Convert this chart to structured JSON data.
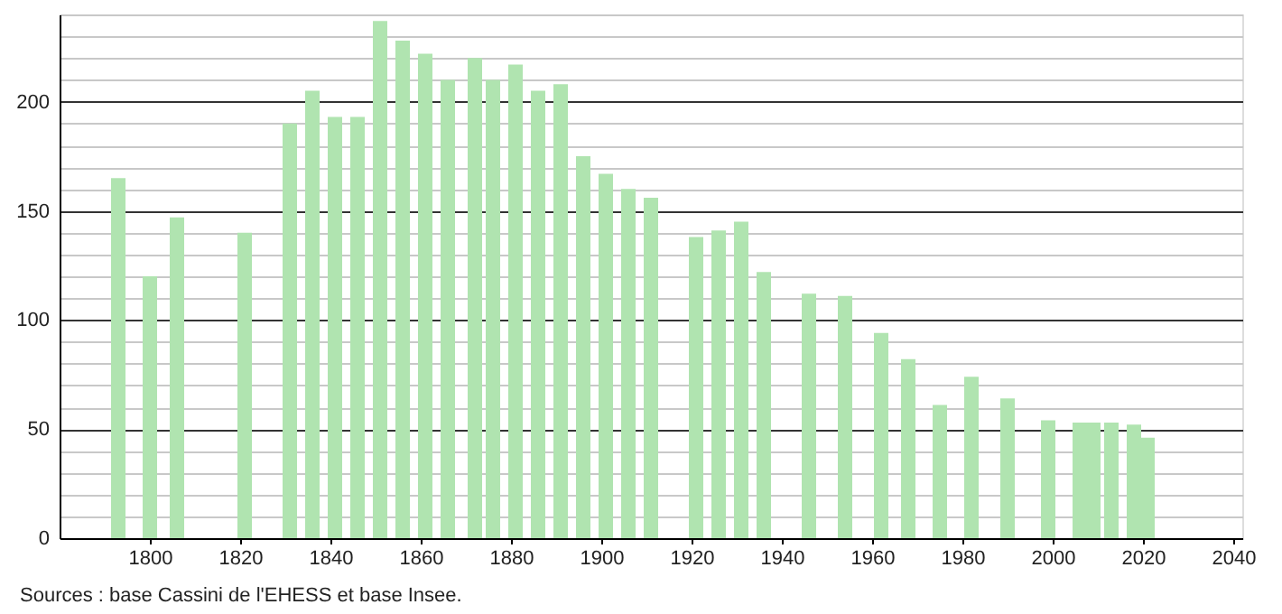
{
  "chart_data": {
    "type": "bar",
    "x": [
      1793,
      1800,
      1806,
      1821,
      1831,
      1836,
      1841,
      1846,
      1851,
      1856,
      1861,
      1866,
      1872,
      1876,
      1881,
      1886,
      1891,
      1896,
      1901,
      1906,
      1911,
      1921,
      1926,
      1931,
      1936,
      1946,
      1954,
      1962,
      1968,
      1975,
      1982,
      1990,
      1999,
      2006,
      2009,
      2013,
      2018,
      2021
    ],
    "values": [
      165,
      120,
      147,
      140,
      190,
      205,
      193,
      193,
      237,
      228,
      222,
      210,
      220,
      210,
      217,
      205,
      208,
      175,
      167,
      160,
      156,
      138,
      141,
      145,
      122,
      112,
      111,
      94,
      82,
      61,
      74,
      64,
      54,
      53,
      53,
      53,
      52,
      46
    ],
    "color": "#b0e4b0",
    "xlim": [
      1780,
      2042
    ],
    "xticks": [
      1800,
      1820,
      1840,
      1860,
      1880,
      1900,
      1920,
      1940,
      1960,
      1980,
      2000,
      2020,
      2040
    ],
    "ylim": [
      0,
      240
    ],
    "yticks": [
      0,
      {
        "value": 10,
        "label": null
      },
      {
        "value": 20,
        "label": null
      },
      {
        "value": 30,
        "label": null
      },
      {
        "value": 40,
        "label": null
      },
      50,
      {
        "value": 60,
        "label": null
      },
      {
        "value": 70,
        "label": null
      },
      {
        "value": 80,
        "label": null
      },
      {
        "value": 90,
        "label": null
      },
      100,
      {
        "value": 110,
        "label": null
      },
      {
        "value": 120,
        "label": null
      },
      {
        "value": 130,
        "label": null
      },
      {
        "value": 140,
        "label": null
      },
      150,
      {
        "value": 160,
        "label": null
      },
      {
        "value": 170,
        "label": null
      },
      {
        "value": 180,
        "label": null
      },
      {
        "value": 190,
        "label": null
      },
      200,
      {
        "value": 210,
        "label": null
      },
      {
        "value": 220,
        "label": null
      },
      {
        "value": 230,
        "label": null
      },
      {
        "value": 240,
        "label": null
      }
    ],
    "grid": "y",
    "annotations": [
      "Sources : base Cassini de l'EHESS et base Insee."
    ]
  }
}
